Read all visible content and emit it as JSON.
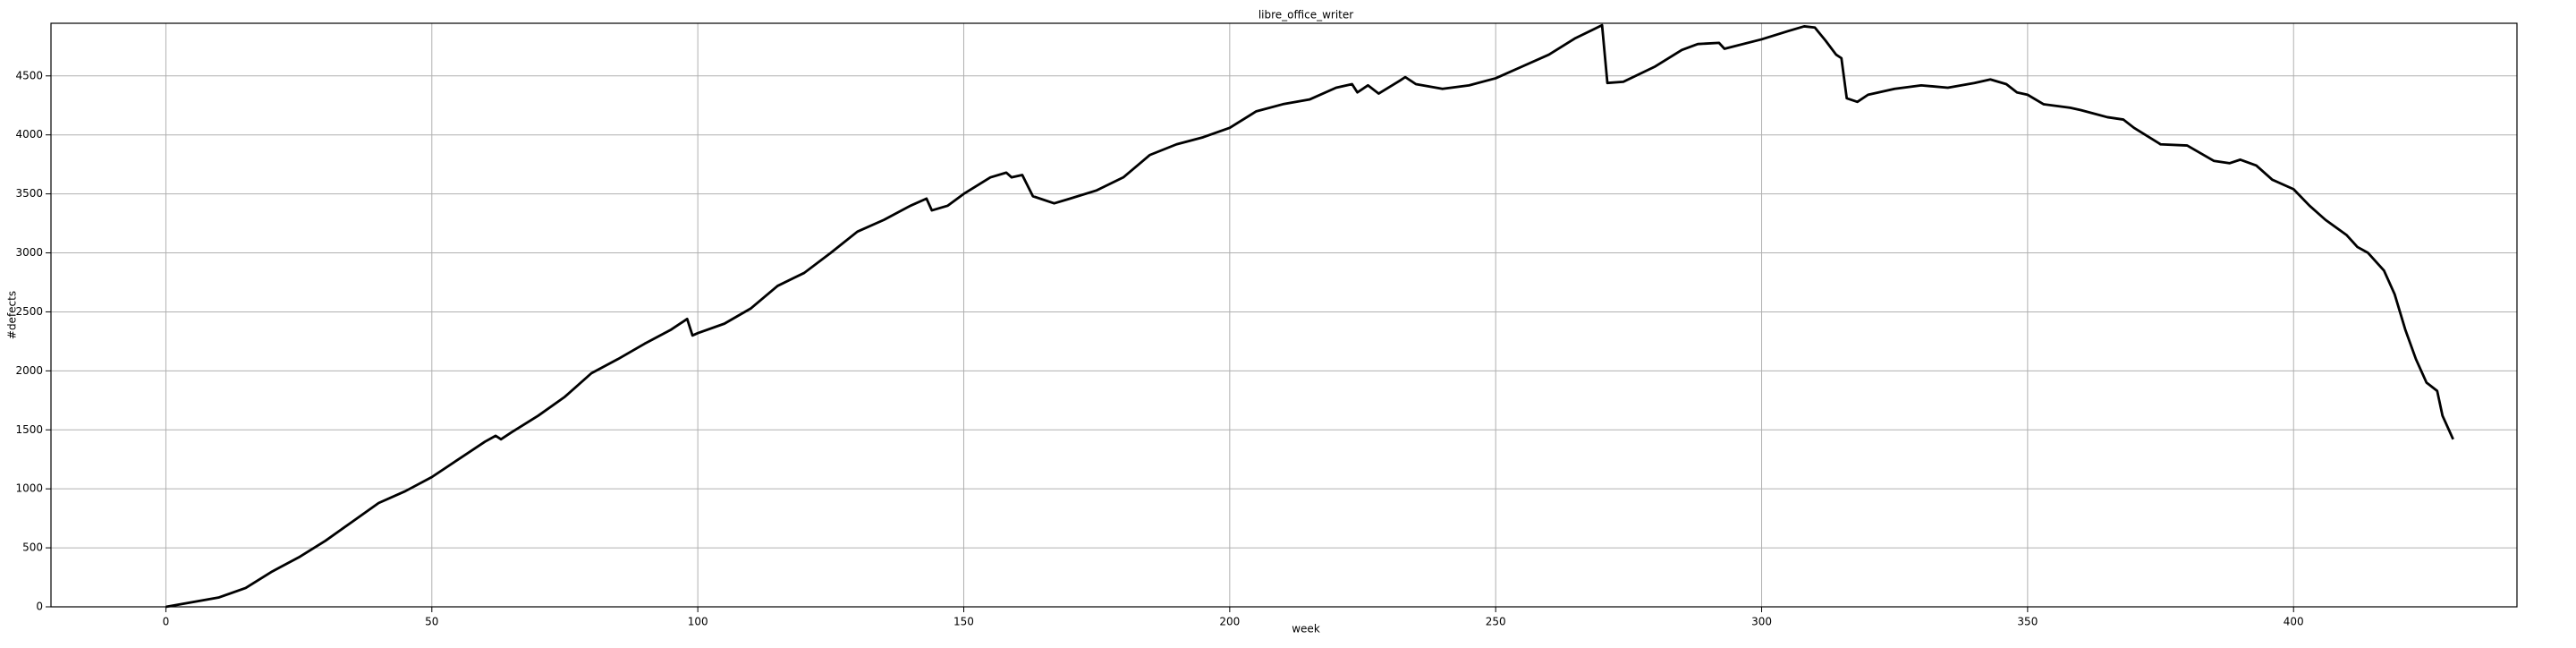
{
  "chart_data": {
    "type": "line",
    "title": "libre_office_writer",
    "x_label": "week",
    "y_label": "#defects",
    "x": [
      0,
      5,
      10,
      15,
      20,
      25,
      30,
      35,
      40,
      45,
      50,
      55,
      60,
      62,
      63,
      65,
      70,
      75,
      80,
      85,
      90,
      95,
      98,
      99,
      100,
      105,
      110,
      115,
      120,
      125,
      130,
      135,
      140,
      143,
      144,
      147,
      150,
      155,
      158,
      159,
      161,
      163,
      167,
      170,
      175,
      180,
      185,
      190,
      195,
      200,
      205,
      210,
      215,
      220,
      223,
      224,
      226,
      228,
      232,
      233,
      235,
      240,
      245,
      250,
      255,
      260,
      265,
      270,
      271,
      274,
      280,
      285,
      288,
      292,
      293,
      300,
      305,
      308,
      310,
      312,
      314,
      315,
      316,
      318,
      320,
      325,
      330,
      335,
      340,
      343,
      346,
      348,
      350,
      353,
      358,
      360,
      365,
      368,
      370,
      375,
      380,
      385,
      388,
      390,
      393,
      396,
      400,
      403,
      406,
      410,
      412,
      414,
      417,
      419,
      421,
      423,
      425,
      427,
      428,
      430
    ],
    "series": [
      {
        "name": "libre_office_writer",
        "color": "#000000",
        "values": [
          0,
          40,
          80,
          160,
          300,
          420,
          560,
          720,
          880,
          980,
          1100,
          1250,
          1400,
          1450,
          1420,
          1480,
          1620,
          1780,
          1980,
          2100,
          2230,
          2350,
          2440,
          2300,
          2320,
          2400,
          2530,
          2720,
          2830,
          3000,
          3180,
          3280,
          3400,
          3460,
          3360,
          3400,
          3500,
          3640,
          3680,
          3640,
          3660,
          3480,
          3420,
          3460,
          3530,
          3640,
          3830,
          3920,
          3980,
          4060,
          4200,
          4260,
          4300,
          4400,
          4430,
          4360,
          4420,
          4350,
          4460,
          4490,
          4430,
          4390,
          4420,
          4480,
          4580,
          4680,
          4820,
          4930,
          4440,
          4450,
          4580,
          4720,
          4770,
          4780,
          4730,
          4810,
          4880,
          4920,
          4910,
          4800,
          4680,
          4650,
          4310,
          4280,
          4340,
          4390,
          4420,
          4400,
          4440,
          4470,
          4430,
          4360,
          4340,
          4260,
          4230,
          4210,
          4150,
          4130,
          4060,
          3920,
          3910,
          3780,
          3760,
          3790,
          3740,
          3620,
          3540,
          3400,
          3280,
          3150,
          3050,
          3000,
          2850,
          2650,
          2350,
          2100,
          1900,
          1830,
          1620,
          1420
        ]
      }
    ],
    "xlim": [
      -21.6,
      442
    ],
    "ylim": [
      0,
      4946
    ],
    "xticks": [
      0,
      50,
      100,
      150,
      200,
      250,
      300,
      350,
      400
    ],
    "yticks": [
      0,
      500,
      1000,
      1500,
      2000,
      2500,
      3000,
      3500,
      4000,
      4500
    ],
    "grid": true
  }
}
